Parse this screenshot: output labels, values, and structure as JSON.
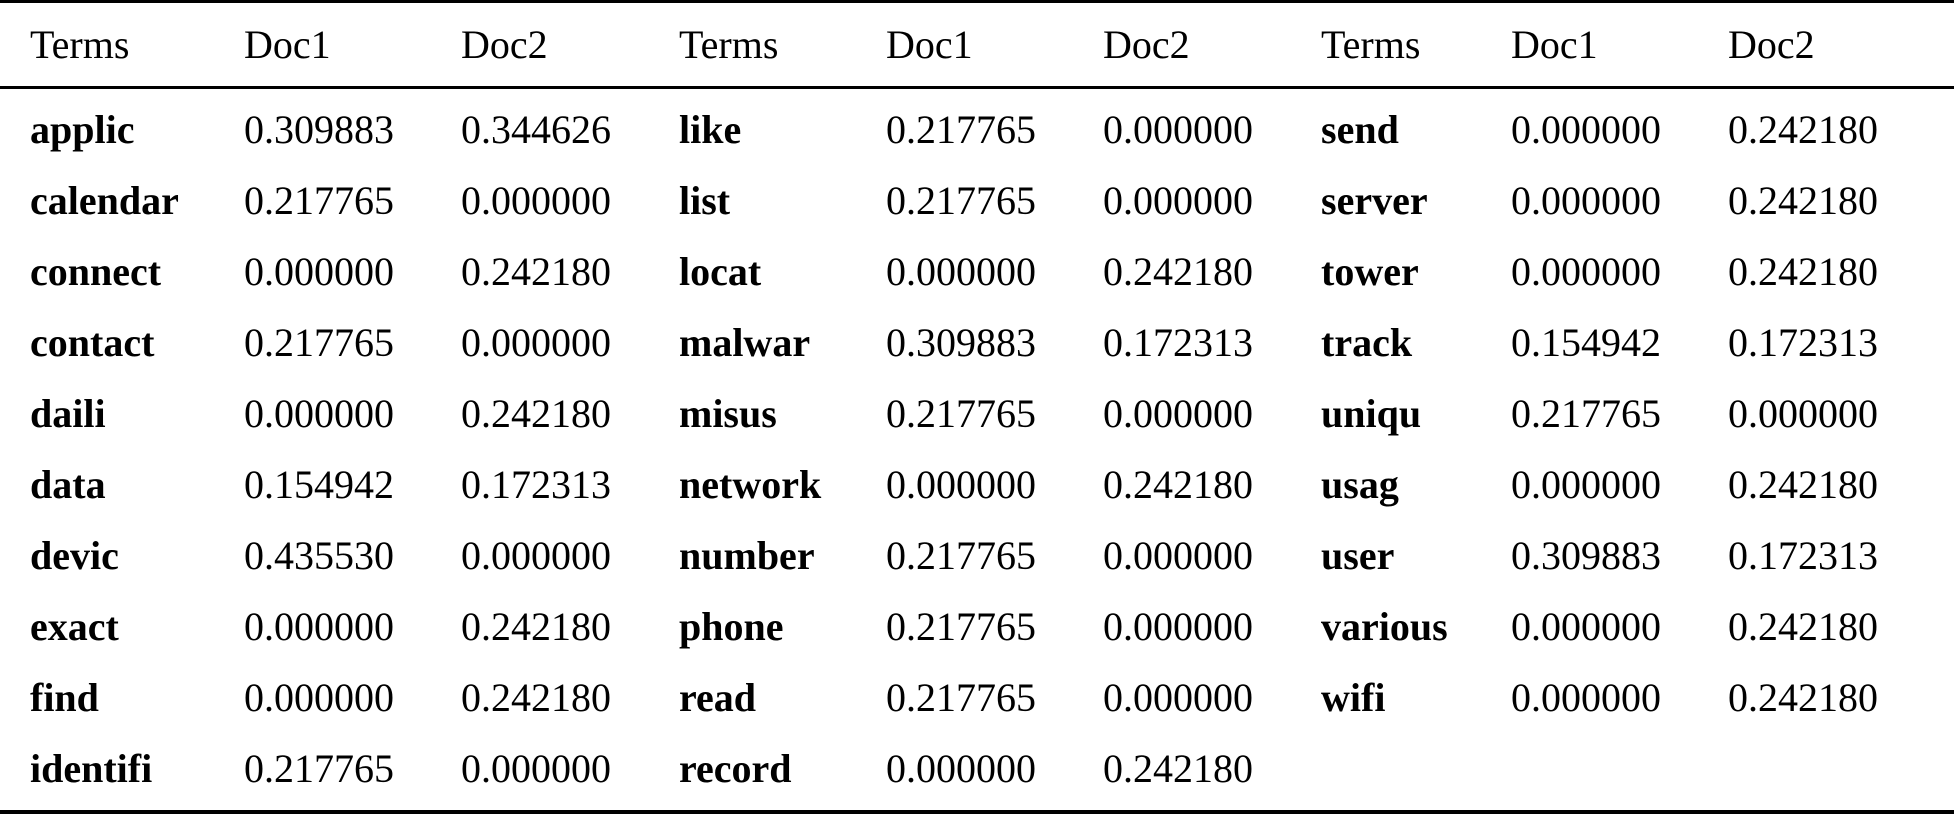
{
  "header": [
    "Terms",
    "Doc1",
    "Doc2",
    "Terms",
    "Doc1",
    "Doc2",
    "Terms",
    "Doc1",
    "Doc2"
  ],
  "groups": [
    {
      "rows": [
        [
          "applic",
          "0.309883",
          "0.344626"
        ],
        [
          "calendar",
          "0.217765",
          "0.000000"
        ],
        [
          "connect",
          "0.000000",
          "0.242180"
        ],
        [
          "contact",
          "0.217765",
          "0.000000"
        ],
        [
          "daili",
          "0.000000",
          "0.242180"
        ],
        [
          "data",
          "0.154942",
          "0.172313"
        ],
        [
          "devic",
          "0.435530",
          "0.000000"
        ],
        [
          "exact",
          "0.000000",
          "0.242180"
        ],
        [
          "find",
          "0.000000",
          "0.242180"
        ],
        [
          "identifi",
          "0.217765",
          "0.000000"
        ]
      ]
    },
    {
      "rows": [
        [
          "like",
          "0.217765",
          "0.000000"
        ],
        [
          "list",
          "0.217765",
          "0.000000"
        ],
        [
          "locat",
          "0.000000",
          "0.242180"
        ],
        [
          "malwar",
          "0.309883",
          "0.172313"
        ],
        [
          "misus",
          "0.217765",
          "0.000000"
        ],
        [
          "network",
          "0.000000",
          "0.242180"
        ],
        [
          "number",
          "0.217765",
          "0.000000"
        ],
        [
          "phone",
          "0.217765",
          "0.000000"
        ],
        [
          "read",
          "0.217765",
          "0.000000"
        ],
        [
          "record",
          "0.000000",
          "0.242180"
        ]
      ]
    },
    {
      "rows": [
        [
          "send",
          "0.000000",
          "0.242180"
        ],
        [
          "server",
          "0.000000",
          "0.242180"
        ],
        [
          "tower",
          "0.000000",
          "0.242180"
        ],
        [
          "track",
          "0.154942",
          "0.172313"
        ],
        [
          "uniqu",
          "0.217765",
          "0.000000"
        ],
        [
          "usag",
          "0.000000",
          "0.242180"
        ],
        [
          "user",
          "0.309883",
          "0.172313"
        ],
        [
          "various",
          "0.000000",
          "0.242180"
        ],
        [
          "wifi",
          "0.000000",
          "0.242180"
        ]
      ]
    }
  ]
}
